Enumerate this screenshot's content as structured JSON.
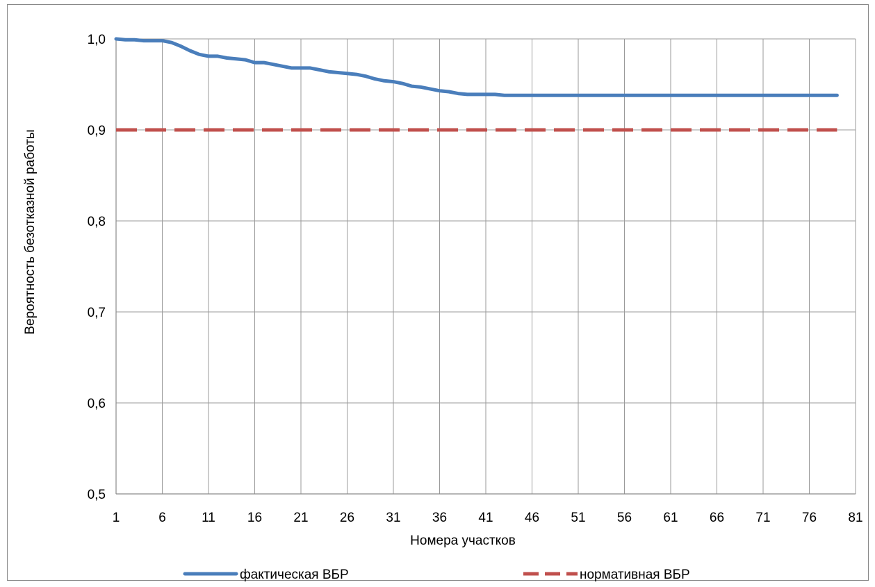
{
  "chart_data": {
    "type": "line",
    "title": "",
    "xlabel": "Номера участков",
    "ylabel": "Вероятность безотказной работы",
    "x_ticks": [
      "1",
      "6",
      "11",
      "16",
      "21",
      "26",
      "31",
      "36",
      "41",
      "46",
      "51",
      "56",
      "61",
      "66",
      "71",
      "76",
      "81"
    ],
    "y_ticks": [
      "0,5",
      "0,6",
      "0,7",
      "0,8",
      "0,9",
      "1,0"
    ],
    "xlim": [
      1,
      81
    ],
    "ylim": [
      0.5,
      1.0
    ],
    "grid": true,
    "legend_position": "bottom",
    "series": [
      {
        "name": "фактическая ВБР",
        "color": "#4a7ebb",
        "style": "solid",
        "x": [
          1,
          2,
          3,
          4,
          5,
          6,
          7,
          8,
          9,
          10,
          11,
          12,
          13,
          14,
          15,
          16,
          17,
          18,
          19,
          20,
          21,
          22,
          23,
          24,
          25,
          26,
          27,
          28,
          29,
          30,
          31,
          32,
          33,
          34,
          35,
          36,
          37,
          38,
          39,
          40,
          41,
          42,
          43,
          44,
          45,
          46,
          47,
          48,
          49,
          50,
          51,
          52,
          53,
          54,
          55,
          56,
          57,
          58,
          59,
          60,
          61,
          62,
          63,
          64,
          65,
          66,
          67,
          68,
          69,
          70,
          71,
          72,
          73,
          74,
          75,
          76,
          77,
          78,
          79
        ],
        "values": [
          1.0,
          0.999,
          0.999,
          0.998,
          0.998,
          0.998,
          0.996,
          0.992,
          0.987,
          0.983,
          0.981,
          0.981,
          0.979,
          0.978,
          0.977,
          0.974,
          0.974,
          0.972,
          0.97,
          0.968,
          0.968,
          0.968,
          0.966,
          0.964,
          0.963,
          0.962,
          0.961,
          0.959,
          0.956,
          0.954,
          0.953,
          0.951,
          0.948,
          0.947,
          0.945,
          0.943,
          0.942,
          0.94,
          0.939,
          0.939,
          0.939,
          0.939,
          0.938,
          0.938,
          0.938,
          0.938,
          0.938,
          0.938,
          0.938,
          0.938,
          0.938,
          0.938,
          0.938,
          0.938,
          0.938,
          0.938,
          0.938,
          0.938,
          0.938,
          0.938,
          0.938,
          0.938,
          0.938,
          0.938,
          0.938,
          0.938,
          0.938,
          0.938,
          0.938,
          0.938,
          0.938,
          0.938,
          0.938,
          0.938,
          0.938,
          0.938,
          0.938,
          0.938,
          0.938
        ]
      },
      {
        "name": "нормативная ВБР",
        "color": "#c0504d",
        "style": "dashed",
        "x": [
          1,
          79
        ],
        "values": [
          0.9,
          0.9
        ]
      }
    ]
  }
}
